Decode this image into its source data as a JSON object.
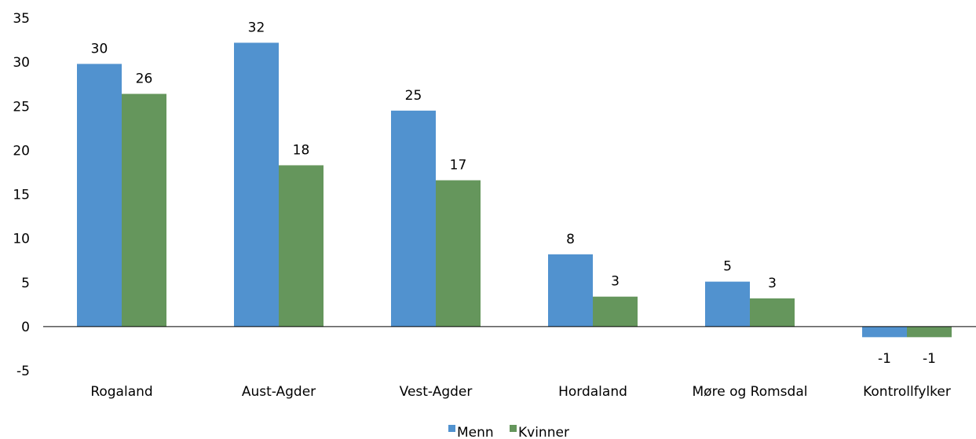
{
  "chart_data": {
    "type": "bar",
    "categories": [
      "Rogaland",
      "Aust-Agder",
      "Vest-Agder",
      "Hordaland",
      "Møre og Romsdal",
      "Kontrollfylker"
    ],
    "series": [
      {
        "name": "Menn",
        "values": [
          29.8,
          32.2,
          24.5,
          8.2,
          5.1,
          -1.2
        ],
        "labels": [
          "30",
          "32",
          "25",
          "8",
          "5",
          "-1"
        ],
        "color": "#5192cf"
      },
      {
        "name": "Kvinner",
        "values": [
          26.4,
          18.3,
          16.6,
          3.4,
          3.2,
          -1.2
        ],
        "labels": [
          "26",
          "18",
          "17",
          "3",
          "3",
          "-1"
        ],
        "color": "#65965c"
      }
    ],
    "title": "",
    "xlabel": "",
    "ylabel": "",
    "ylim": [
      -5,
      35
    ],
    "yticks": [
      -5,
      0,
      5,
      10,
      15,
      20,
      25,
      30,
      35
    ],
    "grid": false,
    "legend": "bottom-center"
  }
}
